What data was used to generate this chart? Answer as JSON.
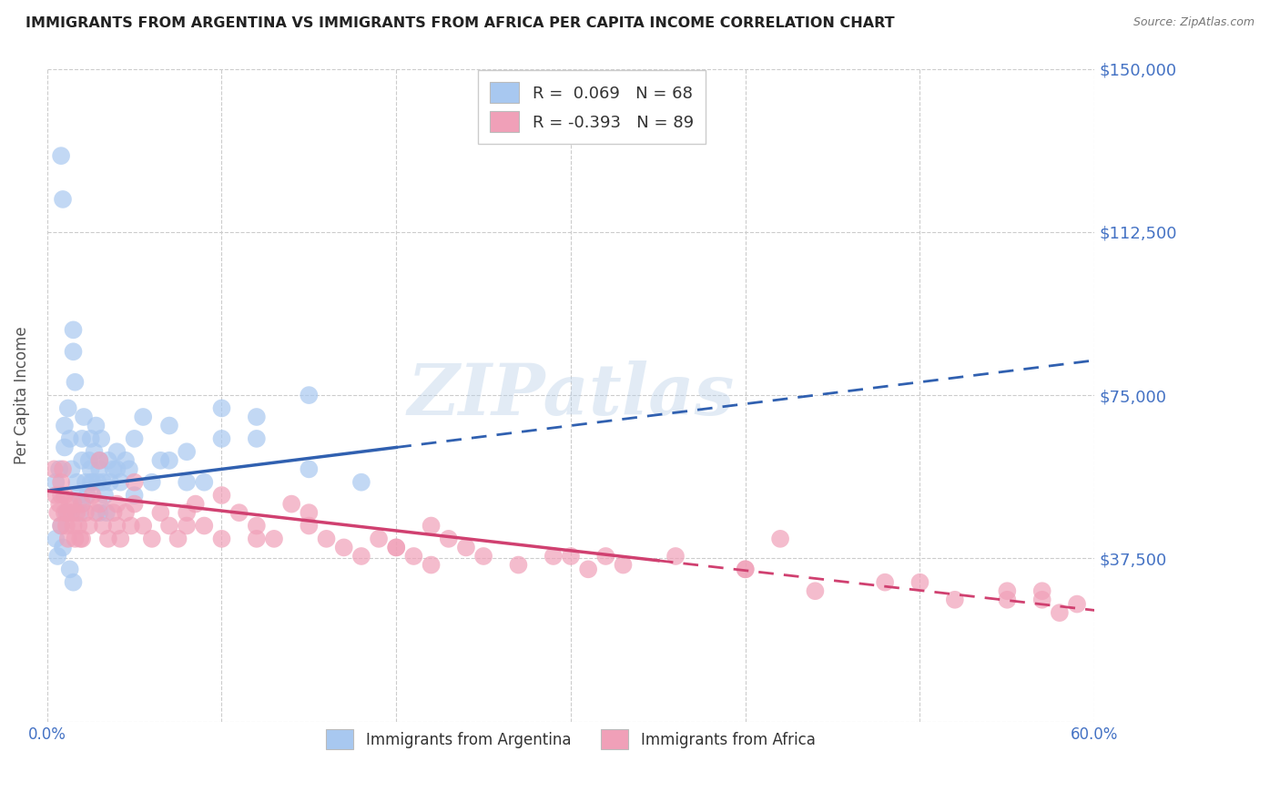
{
  "title": "IMMIGRANTS FROM ARGENTINA VS IMMIGRANTS FROM AFRICA PER CAPITA INCOME CORRELATION CHART",
  "source": "Source: ZipAtlas.com",
  "ylabel": "Per Capita Income",
  "legend_label_1": "Immigrants from Argentina",
  "legend_label_2": "Immigrants from Africa",
  "r1": 0.069,
  "n1": 68,
  "r2": -0.393,
  "n2": 89,
  "color_argentina": "#a8c8f0",
  "color_africa": "#f0a0b8",
  "color_argentina_line": "#3060b0",
  "color_africa_line": "#d04070",
  "color_axis_labels": "#4472c4",
  "xlim": [
    0.0,
    0.6
  ],
  "ylim": [
    0,
    150000
  ],
  "yticks": [
    0,
    37500,
    75000,
    112500,
    150000
  ],
  "ytick_labels": [
    "",
    "$37,500",
    "$75,000",
    "$112,500",
    "$150,000"
  ],
  "xticks": [
    0.0,
    0.1,
    0.2,
    0.3,
    0.4,
    0.5,
    0.6
  ],
  "xtick_labels": [
    "0.0%",
    "",
    "",
    "",
    "",
    "",
    "60.0%"
  ],
  "watermark": "ZIPatlas",
  "bg_color": "#ffffff",
  "grid_color": "#cccccc",
  "argentina_x": [
    0.005,
    0.007,
    0.008,
    0.009,
    0.01,
    0.01,
    0.012,
    0.013,
    0.014,
    0.015,
    0.015,
    0.016,
    0.017,
    0.018,
    0.019,
    0.02,
    0.02,
    0.021,
    0.022,
    0.023,
    0.024,
    0.025,
    0.025,
    0.026,
    0.027,
    0.028,
    0.029,
    0.03,
    0.03,
    0.031,
    0.032,
    0.033,
    0.034,
    0.035,
    0.036,
    0.038,
    0.04,
    0.042,
    0.045,
    0.047,
    0.05,
    0.055,
    0.06,
    0.065,
    0.07,
    0.08,
    0.09,
    0.1,
    0.12,
    0.15,
    0.18,
    0.005,
    0.006,
    0.008,
    0.009,
    0.011,
    0.013,
    0.015,
    0.02,
    0.025,
    0.03,
    0.04,
    0.05,
    0.07,
    0.08,
    0.1,
    0.12,
    0.15
  ],
  "argentina_y": [
    55000,
    58000,
    130000,
    120000,
    63000,
    68000,
    72000,
    65000,
    58000,
    90000,
    85000,
    78000,
    55000,
    52000,
    48000,
    60000,
    65000,
    70000,
    55000,
    52000,
    60000,
    58000,
    65000,
    55000,
    62000,
    68000,
    55000,
    60000,
    58000,
    65000,
    55000,
    52000,
    48000,
    60000,
    55000,
    58000,
    62000,
    55000,
    60000,
    58000,
    65000,
    70000,
    55000,
    60000,
    68000,
    62000,
    55000,
    72000,
    65000,
    58000,
    55000,
    42000,
    38000,
    45000,
    40000,
    48000,
    35000,
    32000,
    50000,
    55000,
    48000,
    58000,
    52000,
    60000,
    55000,
    65000,
    70000,
    75000
  ],
  "africa_x": [
    0.005,
    0.006,
    0.007,
    0.008,
    0.008,
    0.009,
    0.01,
    0.01,
    0.011,
    0.012,
    0.013,
    0.014,
    0.015,
    0.015,
    0.016,
    0.017,
    0.018,
    0.019,
    0.02,
    0.022,
    0.024,
    0.026,
    0.028,
    0.03,
    0.032,
    0.035,
    0.038,
    0.04,
    0.042,
    0.045,
    0.048,
    0.05,
    0.055,
    0.06,
    0.065,
    0.07,
    0.075,
    0.08,
    0.085,
    0.09,
    0.1,
    0.11,
    0.12,
    0.13,
    0.14,
    0.15,
    0.16,
    0.17,
    0.18,
    0.19,
    0.2,
    0.21,
    0.22,
    0.23,
    0.24,
    0.25,
    0.27,
    0.29,
    0.31,
    0.33,
    0.36,
    0.4,
    0.44,
    0.48,
    0.52,
    0.55,
    0.57,
    0.58,
    0.59,
    0.004,
    0.008,
    0.012,
    0.02,
    0.04,
    0.08,
    0.12,
    0.2,
    0.3,
    0.4,
    0.5,
    0.55,
    0.57,
    0.42,
    0.32,
    0.22,
    0.15,
    0.1,
    0.05,
    0.03
  ],
  "africa_y": [
    52000,
    48000,
    50000,
    45000,
    55000,
    58000,
    48000,
    52000,
    45000,
    42000,
    50000,
    48000,
    45000,
    50000,
    42000,
    48000,
    45000,
    42000,
    50000,
    48000,
    45000,
    52000,
    48000,
    50000,
    45000,
    42000,
    48000,
    45000,
    42000,
    48000,
    45000,
    50000,
    45000,
    42000,
    48000,
    45000,
    42000,
    48000,
    50000,
    45000,
    42000,
    48000,
    45000,
    42000,
    50000,
    45000,
    42000,
    40000,
    38000,
    42000,
    40000,
    38000,
    36000,
    42000,
    40000,
    38000,
    36000,
    38000,
    35000,
    36000,
    38000,
    35000,
    30000,
    32000,
    28000,
    30000,
    28000,
    25000,
    27000,
    58000,
    52000,
    48000,
    42000,
    50000,
    45000,
    42000,
    40000,
    38000,
    35000,
    32000,
    28000,
    30000,
    42000,
    38000,
    45000,
    48000,
    52000,
    55000,
    60000
  ],
  "line1_x0": 0.0,
  "line1_y0": 53000,
  "line1_x1": 0.2,
  "line1_y1": 63000,
  "line1_dash_x0": 0.2,
  "line1_dash_x1": 0.6,
  "line2_x0": 0.0,
  "line2_y0": 53000,
  "line2_x1": 0.35,
  "line2_y1": 37000,
  "line2_dash_x0": 0.35,
  "line2_dash_x1": 0.6,
  "line2_dash_y1": 20000
}
